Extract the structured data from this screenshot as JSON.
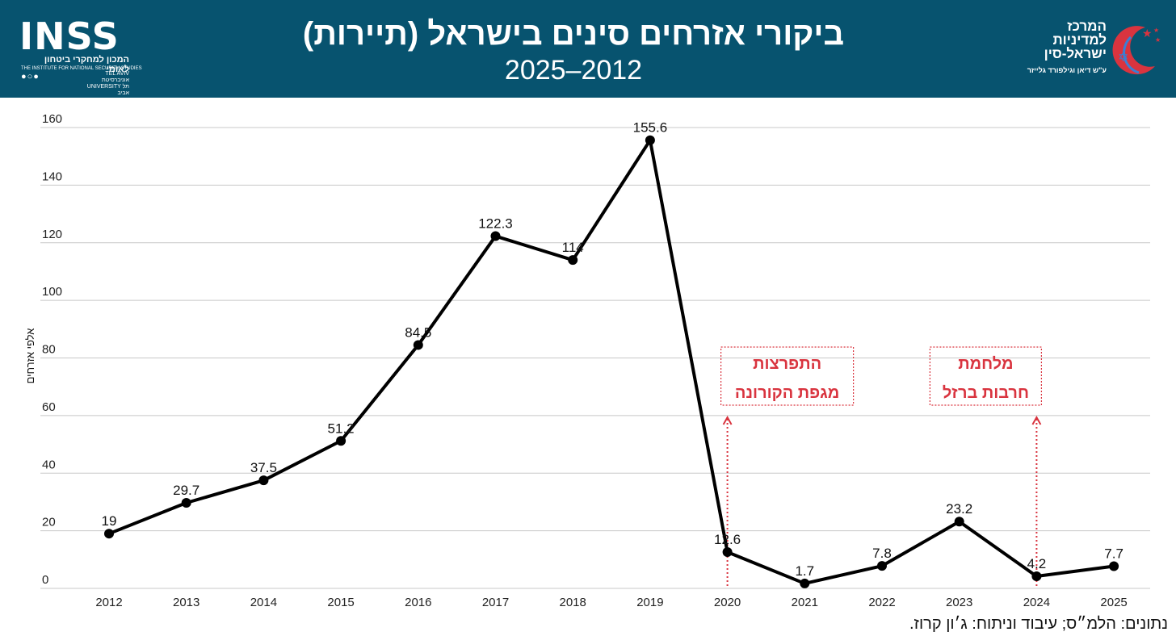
{
  "header": {
    "title": "ביקורי אזרחים סינים בישראל (תיירות)",
    "subtitle": "2025–2012",
    "logo_left_mark": "INSS",
    "logo_left_hebrew": "המכון למחקרי ביטחון לאומי",
    "logo_left_english": "THE INSTITUTE FOR NATIONAL SECURITY STUDIES",
    "logo_left_univ": "TEL AVIV אוניברסיטת UNIVERSITY תל אביב",
    "logo_right_line1": "המרכז",
    "logo_right_line2": "למדיניות",
    "logo_right_line3": "ישראל-סין",
    "logo_right_small": "ע\"ש דיאן וגילפורד גלייזר"
  },
  "chart_data": {
    "type": "line",
    "title": "ביקורי אזרחים סינים בישראל (תיירות)",
    "subtitle": "2025–2012",
    "xlabel": "",
    "ylabel": "אלפי אזרחים",
    "x": [
      "2012",
      "2013",
      "2014",
      "2015",
      "2016",
      "2017",
      "2018",
      "2019",
      "2020",
      "2021",
      "2022",
      "2023",
      "2024",
      "2025"
    ],
    "values": [
      19,
      29.7,
      37.5,
      51.2,
      84.5,
      122.3,
      114,
      155.6,
      12.6,
      1.7,
      7.8,
      23.2,
      4.2,
      7.7
    ],
    "data_labels": [
      "19",
      "29.7",
      "37.5",
      "51.2",
      "84.5",
      "122.3",
      "114",
      "155.6",
      "12.6",
      "1.7",
      "7.8",
      "23.2",
      "4.2",
      "7.7"
    ],
    "yticks": [
      "0",
      "20",
      "40",
      "60",
      "80",
      "100",
      "120",
      "140",
      "160"
    ],
    "ylim": [
      0,
      160
    ],
    "grid": true,
    "line_color": "#000000",
    "annotation_color": "#d9343f",
    "annotations": [
      {
        "x": "2020",
        "line1": "התפרצות",
        "line2": "מגפת הקורונה"
      },
      {
        "x": "2024",
        "line1": "מלחמת",
        "line2": "חרבות ברזל"
      }
    ]
  },
  "source": "נתונים: הלמ״ס; עיבוד וניתוח: ג׳ון קרוז."
}
